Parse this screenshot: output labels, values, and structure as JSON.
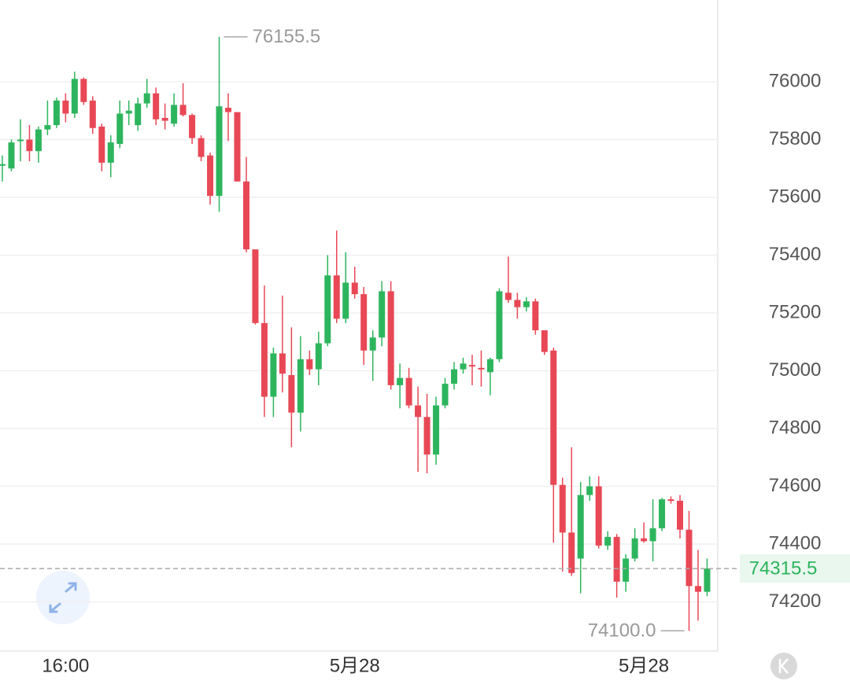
{
  "chart_data": {
    "type": "candlestick",
    "up_color": "#2db55d",
    "down_color": "#e84856",
    "ylim": [
      74030,
      76283
    ],
    "yticks": [
      74200,
      74400,
      74600,
      74800,
      75000,
      75200,
      75400,
      75600,
      75800,
      76000
    ],
    "grid": true,
    "categories": [
      null,
      null,
      null,
      null,
      null,
      null,
      null,
      "16:00",
      null,
      null,
      null,
      null,
      null,
      null,
      null,
      null,
      null,
      null,
      null,
      null,
      null,
      null,
      null,
      null,
      null,
      null,
      null,
      null,
      null,
      null,
      null,
      null,
      null,
      null,
      null,
      null,
      null,
      null,
      null,
      "5月28",
      null,
      null,
      null,
      null,
      null,
      null,
      null,
      null,
      null,
      null,
      null,
      null,
      null,
      null,
      null,
      null,
      null,
      null,
      null,
      null,
      null,
      null,
      null,
      null,
      null,
      null,
      null,
      null,
      null,
      null,
      null,
      "5月28",
      null,
      null,
      null,
      null,
      null,
      null,
      null
    ],
    "open": [
      75710,
      75700,
      75795,
      75800,
      75760,
      75835,
      75850,
      75935,
      75890,
      76010,
      75935,
      75845,
      75720,
      75785,
      75890,
      75850,
      75925,
      75960,
      75875,
      75855,
      75920,
      75885,
      75805,
      75745,
      75605,
      75910,
      75895,
      75655,
      75420,
      75165,
      74910,
      75060,
      74985,
      74855,
      75040,
      75005,
      75095,
      75330,
      75180,
      75305,
      75265,
      75070,
      75115,
      75275,
      74950,
      74975,
      74880,
      74840,
      74710,
      74880,
      74955,
      75005,
      75020,
      75010,
      74995,
      75040,
      75270,
      75245,
      75220,
      75240,
      75140,
      75070,
      74605,
      74440,
      74350,
      74570,
      74600,
      74395,
      74425,
      74270,
      74350,
      74420,
      74410,
      74455,
      74555,
      74550,
      74450,
      74255,
      74235
    ],
    "high": [
      75745,
      75800,
      75870,
      75850,
      75845,
      75935,
      75945,
      75960,
      76035,
      76015,
      75950,
      75855,
      75815,
      75935,
      75935,
      75945,
      76010,
      75980,
      75925,
      75960,
      75995,
      75890,
      75815,
      75755,
      76155.5,
      75960,
      75895,
      75740,
      75420,
      75295,
      75080,
      75260,
      75150,
      75120,
      75070,
      75135,
      75400,
      75485,
      75410,
      75360,
      75290,
      75140,
      75310,
      75310,
      75025,
      75010,
      74945,
      74920,
      74910,
      74975,
      75030,
      75045,
      75055,
      75070,
      75045,
      75285,
      75395,
      75270,
      75255,
      75250,
      75140,
      75080,
      74630,
      74735,
      74615,
      74635,
      74635,
      74445,
      74435,
      74365,
      74455,
      74475,
      74555,
      74560,
      74565,
      74570,
      74515,
      74380,
      74350
    ],
    "low": [
      75655,
      75690,
      75725,
      75725,
      75720,
      75815,
      75840,
      75860,
      75875,
      75920,
      75820,
      75690,
      75670,
      75770,
      75850,
      75830,
      75910,
      75850,
      75835,
      75845,
      75880,
      75785,
      75725,
      75575,
      75550,
      75795,
      75655,
      75410,
      75160,
      74840,
      74840,
      74925,
      74735,
      74790,
      74985,
      74950,
      75085,
      75165,
      75165,
      75250,
      75020,
      74965,
      75085,
      74935,
      74870,
      74870,
      74650,
      74645,
      74675,
      74870,
      74935,
      74990,
      74950,
      74945,
      74915,
      75030,
      75235,
      75180,
      75205,
      75125,
      75055,
      74405,
      74305,
      74290,
      74230,
      74550,
      74385,
      74380,
      74215,
      74235,
      74340,
      74405,
      74340,
      74445,
      74540,
      74420,
      74100,
      74135,
      74220
    ],
    "close": [
      75715,
      75790,
      75800,
      75760,
      75835,
      75850,
      75935,
      75890,
      76010,
      75930,
      75840,
      75720,
      75790,
      75890,
      75900,
      75925,
      75960,
      75870,
      75865,
      75920,
      75885,
      75805,
      75740,
      75605,
      75915,
      75895,
      75655,
      75420,
      75165,
      74910,
      75060,
      74990,
      74855,
      75040,
      75005,
      75095,
      75330,
      75180,
      75305,
      75265,
      75070,
      75115,
      75275,
      74950,
      74975,
      74880,
      74840,
      74710,
      74880,
      74955,
      75005,
      75025,
      75015,
      75005,
      75040,
      75275,
      75245,
      75220,
      75240,
      75140,
      75065,
      74605,
      74440,
      74300,
      74570,
      74600,
      74395,
      74425,
      74270,
      74350,
      74420,
      74410,
      74455,
      74555,
      74550,
      74450,
      74255,
      74235,
      74315.5
    ],
    "max_annotation": 76155.5,
    "min_annotation": {
      "value": 74100,
      "label": "74100.0"
    },
    "last_price": 74315.5
  }
}
